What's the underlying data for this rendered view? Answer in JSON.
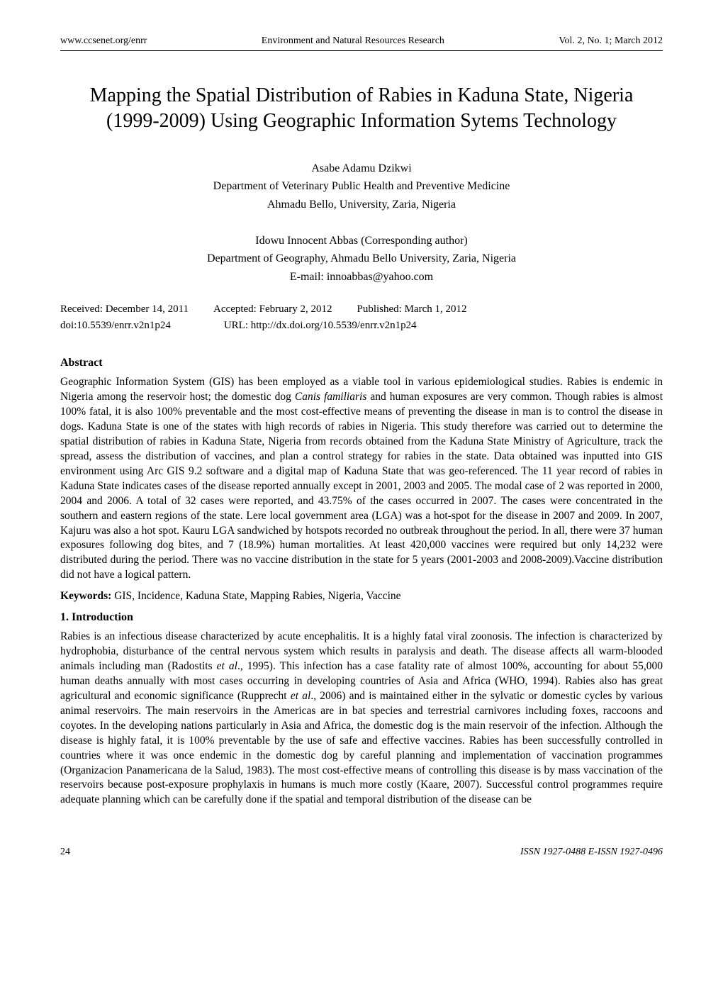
{
  "header": {
    "left": "www.ccsenet.org/enrr",
    "center": "Environment and Natural Resources Research",
    "right": "Vol. 2, No. 1; March 2012"
  },
  "title_line1": "Mapping the Spatial Distribution of Rabies in Kaduna State, Nigeria",
  "title_line2": "(1999-2009) Using Geographic Information Sytems Technology",
  "author1": {
    "name": "Asabe Adamu Dzikwi",
    "dept": "Department of Veterinary Public Health and Preventive Medicine",
    "affil": "Ahmadu Bello, University, Zaria, Nigeria"
  },
  "author2": {
    "name": "Idowu Innocent Abbas (Corresponding author)",
    "dept": "Department of Geography, Ahmadu Bello University, Zaria, Nigeria",
    "email": "E-mail: innoabbas@yahoo.com"
  },
  "dates": {
    "received": "Received: December 14, 2011",
    "accepted": "Accepted: February 2, 2012",
    "published": "Published: March 1, 2012"
  },
  "doi": {
    "left": "doi:10.5539/enrr.v2n1p24",
    "right": "URL: http://dx.doi.org/10.5539/enrr.v2n1p24"
  },
  "abstract_heading": "Abstract",
  "abstract_pre_italic": "Geographic Information System (GIS) has been employed as a viable tool in various epidemiological studies. Rabies is endemic in Nigeria among the reservoir host; the domestic dog ",
  "abstract_italic": "Canis familiaris",
  "abstract_post_italic": " and human exposures are very common. Though rabies is almost 100% fatal, it is also 100% preventable and the most cost-effective means of preventing the disease in man is to control the disease in dogs. Kaduna State is one of the states with high records of rabies in Nigeria. This study therefore was carried out to determine the spatial distribution of rabies in Kaduna State, Nigeria from records obtained from the Kaduna State Ministry of Agriculture, track the spread, assess the distribution of vaccines, and plan a control strategy for rabies in the state. Data obtained was inputted into GIS environment using Arc GIS 9.2 software and a digital map of Kaduna State that was geo-referenced. The 11 year record of rabies in Kaduna State indicates cases of the disease reported annually except in 2001, 2003 and 2005. The modal case of 2 was reported in 2000, 2004 and 2006. A total of 32 cases were reported, and 43.75% of the cases occurred in 2007. The cases were concentrated in the southern and eastern regions of the state. Lere local government area (LGA) was a hot-spot for the disease in 2007 and 2009. In 2007, Kajuru was also a hot spot. Kauru LGA sandwiched by hotspots recorded no outbreak throughout the period. In all, there were 37 human exposures following dog bites, and 7 (18.9%) human mortalities. At least 420,000 vaccines were required but only 14,232 were distributed during the period. There was no vaccine distribution in the state for 5 years (2001-2003 and 2008-2009).Vaccine distribution did not have a logical pattern.",
  "keywords_label": "Keywords:",
  "keywords_text": " GIS, Incidence, Kaduna State, Mapping Rabies, Nigeria, Vaccine",
  "intro_heading": "1. Introduction",
  "intro_p1_a": "Rabies is an infectious disease characterized by acute encephalitis. It is a highly fatal viral zoonosis. The infection is characterized by hydrophobia, disturbance of the central nervous system which results in paralysis and death. The disease affects all warm-blooded animals including man (Radostits ",
  "intro_p1_b": "et al",
  "intro_p1_c": "., 1995). This infection has a case fatality rate of almost 100%, accounting for about 55,000 human deaths annually with most cases occurring in developing countries of Asia and Africa (WHO, 1994). Rabies also has great agricultural and economic significance (Rupprecht ",
  "intro_p1_d": "et al",
  "intro_p1_e": "., 2006) and is maintained either in the sylvatic or domestic cycles by various animal reservoirs. The main reservoirs in the Americas are in bat species and terrestrial carnivores including foxes, raccoons and coyotes. In the developing nations particularly in Asia and Africa, the domestic dog is the main reservoir of the infection. Although the disease is highly fatal, it is 100% preventable by the use of safe and effective vaccines. Rabies has been successfully controlled in countries where it was once endemic in the domestic dog by careful planning and implementation of vaccination programmes (Organizacion Panamericana de la Salud, 1983). The most cost-effective means of controlling this disease is by mass vaccination of the reservoirs because post-exposure prophylaxis in humans is much more costly (Kaare, 2007). Successful control programmes require adequate planning which can be carefully done if the spatial and temporal distribution of the disease can be",
  "footer": {
    "page": "24",
    "issn": "ISSN 1927-0488    E-ISSN 1927-0496"
  }
}
